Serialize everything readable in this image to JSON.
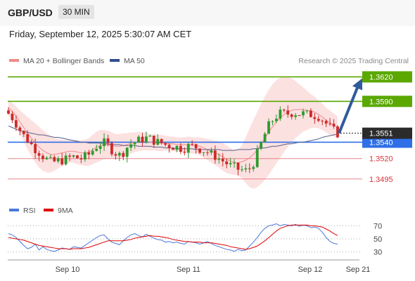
{
  "header": {
    "pair": "GBP/USD",
    "timeframe": "30 MIN"
  },
  "datetime": "Friday, September 12, 2025 5:30:07 AM CET",
  "attribution": "Research © 2025 Trading Central",
  "legend": {
    "ma20": {
      "label": "MA 20 + Bollinger Bands",
      "color": "#f08a8a"
    },
    "ma50": {
      "label": "MA 50",
      "color": "#2f4f8f"
    },
    "rsi": {
      "label": "RSI",
      "color": "#4a78d8"
    },
    "rsi_ma": {
      "label": "9MA",
      "color": "#e00000"
    }
  },
  "colors": {
    "resistance": "#5aa800",
    "pivot": "#2f6fe8",
    "support": "#e0606a",
    "arrow": "#2f5b9a",
    "bull": "#2e9a2e",
    "bear": "#cc2b2b"
  },
  "chart_data": [
    {
      "type": "candlestick",
      "ylim": [
        1.3475,
        1.3635
      ],
      "x_labels": [
        "Sep 10",
        "Sep 11",
        "Sep 12",
        "Sep 21"
      ],
      "current_price": "1.3551",
      "levels": [
        {
          "value": "1.3620",
          "kind": "resistance"
        },
        {
          "value": "1.3590",
          "kind": "resistance"
        },
        {
          "value": "1.3540",
          "kind": "pivot"
        },
        {
          "value": "1.3520",
          "kind": "support"
        },
        {
          "value": "1.3495",
          "kind": "support"
        }
      ],
      "projection": {
        "from": 1.3551,
        "to": 1.362
      },
      "close": [
        1.3575,
        1.357,
        1.3563,
        1.3555,
        1.3548,
        1.3543,
        1.3537,
        1.3532,
        1.3528,
        1.3523,
        1.3519,
        1.3516,
        1.3516,
        1.3517,
        1.3518,
        1.3519,
        1.3521,
        1.3522,
        1.3521,
        1.352,
        1.3522,
        1.3525,
        1.353,
        1.3535,
        1.3538,
        1.3539,
        1.3536,
        1.3531,
        1.3527,
        1.3524,
        1.3528,
        1.3534,
        1.3538,
        1.354,
        1.3542,
        1.3544,
        1.3545,
        1.3544,
        1.3542,
        1.354,
        1.3539,
        1.3537,
        1.3536,
        1.3535,
        1.3534,
        1.3533,
        1.3533,
        1.3535,
        1.3535,
        1.3534,
        1.3532,
        1.353,
        1.3528,
        1.3525,
        1.3523,
        1.352,
        1.3517,
        1.3514,
        1.3511,
        1.3509,
        1.3507,
        1.3506,
        1.3505,
        1.3508,
        1.3515,
        1.3526,
        1.3538,
        1.355,
        1.356,
        1.3567,
        1.3572,
        1.3575,
        1.3575,
        1.3575,
        1.3576,
        1.3576,
        1.3575,
        1.3575,
        1.3574,
        1.3574,
        1.3573,
        1.3572,
        1.3568,
        1.3563,
        1.3558,
        1.3554,
        1.3551
      ],
      "ma50": [
        1.356,
        1.3558,
        1.3556,
        1.3554,
        1.3553,
        1.3552,
        1.3551,
        1.355,
        1.3549,
        1.3549,
        1.3548,
        1.3547,
        1.3546,
        1.3546,
        1.3545,
        1.3544,
        1.3543,
        1.3542,
        1.3541,
        1.354,
        1.354,
        1.3539,
        1.3539,
        1.3539,
        1.3539,
        1.3538,
        1.3538,
        1.3537,
        1.3537,
        1.3537,
        1.3536,
        1.3536,
        1.3536,
        1.3536,
        1.3535,
        1.3535,
        1.3535,
        1.3535,
        1.3534,
        1.3534,
        1.3534,
        1.3533,
        1.3533,
        1.3533,
        1.3532,
        1.3532,
        1.3532,
        1.3532,
        1.3532,
        1.3531,
        1.3531,
        1.3531,
        1.3531,
        1.3531,
        1.3531,
        1.3531,
        1.353,
        1.353,
        1.353,
        1.353,
        1.3531,
        1.3531,
        1.3531,
        1.3531,
        1.3532,
        1.3532,
        1.3533,
        1.3533,
        1.3534,
        1.3535,
        1.3535,
        1.3536,
        1.3537,
        1.3538,
        1.3538,
        1.3539,
        1.354,
        1.354,
        1.3541,
        1.3542,
        1.3543,
        1.3544,
        1.3546,
        1.3547,
        1.3548,
        1.3549,
        1.355
      ],
      "ma20": [
        1.3582,
        1.3578,
        1.3572,
        1.3565,
        1.3558,
        1.3551,
        1.3545,
        1.3539,
        1.3534,
        1.353,
        1.3527,
        1.3525,
        1.3525,
        1.3526,
        1.3527,
        1.3528,
        1.3529,
        1.3529,
        1.3528,
        1.3527,
        1.3527,
        1.3528,
        1.3531,
        1.3534,
        1.3536,
        1.3537,
        1.3537,
        1.3536,
        1.3535,
        1.3535,
        1.3536,
        1.3537,
        1.3539,
        1.354,
        1.3541,
        1.3541,
        1.3541,
        1.354,
        1.354,
        1.3539,
        1.3539,
        1.3539,
        1.3538,
        1.3538,
        1.3537,
        1.3537,
        1.3537,
        1.3537,
        1.3536,
        1.3536,
        1.3535,
        1.3533,
        1.3531,
        1.3529,
        1.3527,
        1.3525,
        1.3522,
        1.3519,
        1.3517,
        1.3515,
        1.3515,
        1.3516,
        1.3518,
        1.3521,
        1.3525,
        1.3531,
        1.3538,
        1.3545,
        1.3552,
        1.3559,
        1.3565,
        1.357,
        1.3574,
        1.3577,
        1.3579,
        1.358,
        1.358,
        1.358,
        1.3579,
        1.3578,
        1.3577,
        1.3574,
        1.3571,
        1.3567,
        1.3564,
        1.3561,
        1.3558
      ],
      "bb_width": [
        0.001,
        0.001,
        0.0012,
        0.0014,
        0.0017,
        0.002,
        0.0022,
        0.0024,
        0.0025,
        0.0025,
        0.0024,
        0.0022,
        0.002,
        0.0018,
        0.0016,
        0.0015,
        0.0014,
        0.0014,
        0.0015,
        0.0015,
        0.0016,
        0.0017,
        0.0018,
        0.0019,
        0.0019,
        0.0018,
        0.0017,
        0.0016,
        0.0015,
        0.0015,
        0.0015,
        0.0014,
        0.0013,
        0.0012,
        0.0012,
        0.0011,
        0.0011,
        0.001,
        0.001,
        0.001,
        0.001,
        0.0009,
        0.0009,
        0.0009,
        0.0009,
        0.0009,
        0.0009,
        0.001,
        0.001,
        0.001,
        0.0011,
        0.0012,
        0.0013,
        0.0014,
        0.0015,
        0.0016,
        0.0017,
        0.0017,
        0.0016,
        0.0015,
        0.0016,
        0.002,
        0.0028,
        0.0036,
        0.0042,
        0.0046,
        0.0049,
        0.0051,
        0.0052,
        0.0052,
        0.0051,
        0.0049,
        0.0046,
        0.0043,
        0.0039,
        0.0035,
        0.0031,
        0.0027,
        0.0024,
        0.0021,
        0.0019,
        0.0017,
        0.0016,
        0.0015,
        0.0015,
        0.0014,
        0.0014
      ]
    },
    {
      "type": "line",
      "name": "RSI",
      "ylim": [
        20,
        80
      ],
      "y_ticks": [
        70,
        50,
        30
      ],
      "series": [
        {
          "name": "RSI",
          "values": [
            58,
            56,
            52,
            46,
            40,
            35,
            37,
            42,
            33,
            38,
            34,
            32,
            31,
            33,
            36,
            35,
            34,
            38,
            37,
            36,
            40,
            44,
            48,
            52,
            55,
            56,
            50,
            45,
            43,
            41,
            47,
            52,
            56,
            58,
            55,
            53,
            57,
            54,
            51,
            49,
            48,
            45,
            46,
            44,
            45,
            43,
            42,
            46,
            45,
            44,
            42,
            44,
            46,
            43,
            40,
            38,
            36,
            34,
            33,
            31,
            34,
            32,
            33,
            39,
            45,
            52,
            60,
            66,
            70,
            71,
            73,
            70,
            72,
            71,
            70,
            72,
            69,
            71,
            70,
            67,
            68,
            66,
            60,
            52,
            46,
            43,
            42
          ]
        },
        {
          "name": "9MA",
          "values": [
            52,
            51,
            50,
            49,
            48,
            46,
            44,
            42,
            40,
            39,
            38,
            37,
            36,
            35,
            35,
            35,
            34,
            35,
            35,
            35,
            36,
            37,
            39,
            41,
            43,
            45,
            47,
            47,
            47,
            47,
            47,
            48,
            49,
            51,
            52,
            53,
            54,
            55,
            54,
            54,
            53,
            52,
            51,
            49,
            48,
            47,
            46,
            46,
            45,
            45,
            45,
            44,
            44,
            44,
            43,
            42,
            41,
            40,
            38,
            37,
            36,
            35,
            34,
            35,
            37,
            39,
            43,
            47,
            52,
            57,
            62,
            66,
            68,
            70,
            71,
            71,
            71,
            71,
            71,
            70,
            70,
            69,
            68,
            65,
            62,
            58,
            55
          ]
        }
      ]
    }
  ]
}
